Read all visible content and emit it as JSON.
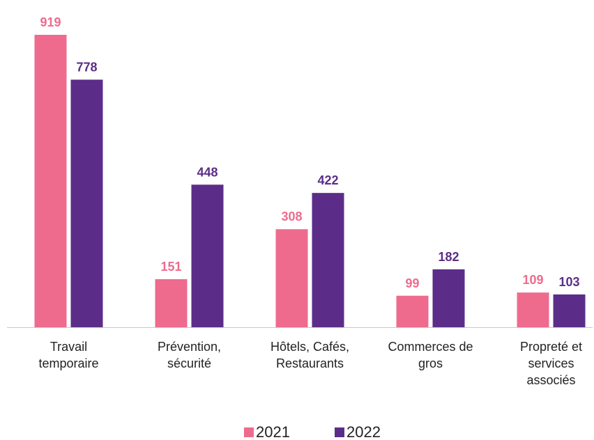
{
  "chart_data": {
    "type": "bar",
    "categories": [
      "Travail temporaire",
      "Prévention, sécurité",
      "Hôtels, Cafés, Restaurants",
      "Commerces de gros",
      "Propreté et services associés"
    ],
    "series": [
      {
        "name": "2021",
        "color": "#ee6b8e",
        "values": [
          919,
          151,
          308,
          99,
          109
        ]
      },
      {
        "name": "2022",
        "color": "#5b2d89",
        "values": [
          778,
          448,
          422,
          182,
          103
        ]
      }
    ],
    "legend": "bottom"
  }
}
